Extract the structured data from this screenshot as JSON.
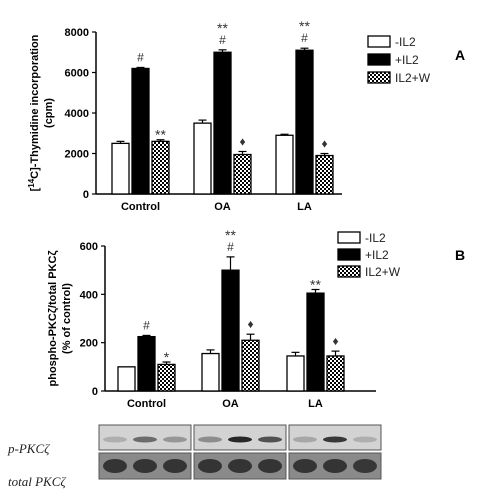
{
  "figure_labels": {
    "panel_a": "A",
    "panel_b": "B"
  },
  "blot": {
    "row1_label": "p-PKCζ",
    "row2_label": "total PKCζ",
    "band_intensity": {
      "p": [
        [
          0.15,
          0.55,
          0.3
        ],
        [
          0.35,
          0.95,
          0.7
        ],
        [
          0.2,
          0.85,
          0.15
        ]
      ],
      "total": [
        [
          0.9,
          0.9,
          0.9
        ],
        [
          0.9,
          0.9,
          0.9
        ],
        [
          0.9,
          0.9,
          0.85
        ]
      ]
    }
  },
  "chart_data": [
    {
      "type": "bar",
      "ylabel_parts": [
        "[",
        "14",
        "C]-Thymidine incorporation",
        "(cpm)"
      ],
      "categories": [
        "Control",
        "OA",
        "LA"
      ],
      "ylim": [
        0,
        8000
      ],
      "yticks": [
        0,
        2000,
        4000,
        6000,
        8000
      ],
      "legend_position": "top-right",
      "series": [
        {
          "name": "-IL2",
          "fill": "white",
          "values": [
            2500,
            3500,
            2900
          ],
          "errors": [
            100,
            150,
            50
          ]
        },
        {
          "name": "+IL2",
          "fill": "black",
          "values": [
            6200,
            7000,
            7100
          ],
          "errors": [
            50,
            120,
            100
          ]
        },
        {
          "name": "IL2+W",
          "fill": "hatch",
          "values": [
            2600,
            1950,
            1900
          ],
          "errors": [
            80,
            150,
            100
          ]
        }
      ],
      "annotations": [
        {
          "category": 0,
          "series": 1,
          "marks": [
            "#"
          ]
        },
        {
          "category": 0,
          "series": 2,
          "marks": [
            "**"
          ]
        },
        {
          "category": 1,
          "series": 1,
          "marks": [
            "**",
            "#"
          ]
        },
        {
          "category": 1,
          "series": 2,
          "marks": [
            "♦"
          ]
        },
        {
          "category": 2,
          "series": 1,
          "marks": [
            "**",
            "#"
          ]
        },
        {
          "category": 2,
          "series": 2,
          "marks": [
            "♦"
          ]
        }
      ]
    },
    {
      "type": "bar",
      "ylabel_parts": [
        "phospho-PKCζ/total PKCζ",
        "(% of control)"
      ],
      "categories": [
        "Control",
        "OA",
        "LA"
      ],
      "ylim": [
        0,
        600
      ],
      "yticks": [
        0,
        200,
        400,
        600
      ],
      "legend_position": "top-right",
      "series": [
        {
          "name": "-IL2",
          "fill": "white",
          "values": [
            100,
            155,
            145
          ],
          "errors": [
            0,
            15,
            15
          ]
        },
        {
          "name": "+IL2",
          "fill": "black",
          "values": [
            225,
            500,
            405
          ],
          "errors": [
            5,
            55,
            15
          ]
        },
        {
          "name": "IL2+W",
          "fill": "hatch",
          "values": [
            110,
            210,
            145
          ],
          "errors": [
            10,
            25,
            20
          ]
        }
      ],
      "annotations": [
        {
          "category": 0,
          "series": 1,
          "marks": [
            "#"
          ]
        },
        {
          "category": 0,
          "series": 2,
          "marks": [
            "*"
          ]
        },
        {
          "category": 1,
          "series": 1,
          "marks": [
            "**",
            "#"
          ]
        },
        {
          "category": 1,
          "series": 2,
          "marks": [
            "♦"
          ]
        },
        {
          "category": 2,
          "series": 1,
          "marks": [
            "**"
          ]
        },
        {
          "category": 2,
          "series": 2,
          "marks": [
            "♦"
          ]
        }
      ]
    }
  ]
}
